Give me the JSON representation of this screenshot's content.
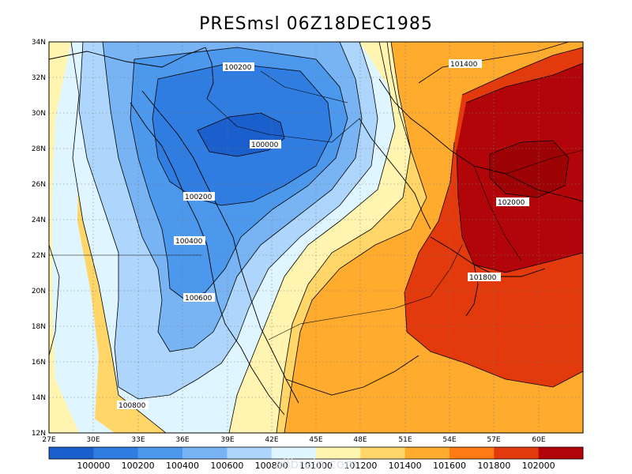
{
  "title": "PRESmsl  06Z18DEC1985",
  "watermark": "allbrain.com",
  "x_ticks": [
    "27E",
    "30E",
    "33E",
    "36E",
    "39E",
    "42E",
    "45E",
    "48E",
    "51E",
    "54E",
    "57E",
    "60E"
  ],
  "y_ticks": [
    "12N",
    "14N",
    "16N",
    "18N",
    "20N",
    "22N",
    "24N",
    "26N",
    "28N",
    "30N",
    "32N",
    "34N"
  ],
  "contour_labels": {
    "c1": "100200",
    "c2": "100000",
    "c3": "100200",
    "c4": "100400",
    "c5": "100600",
    "c6": "100800",
    "c7": "101400",
    "c8": "102000",
    "c9": "101800"
  },
  "colorbar": {
    "labels": [
      "100000",
      "100200",
      "100400",
      "100600",
      "100800",
      "101000",
      "101200",
      "101400",
      "101600",
      "101800",
      "102000"
    ],
    "colors": [
      "#1b5fcd",
      "#2f7de0",
      "#4b98ec",
      "#78b4f4",
      "#aed5fb",
      "#dff5ff",
      "#fff5b0",
      "#ffd667",
      "#ffab2e",
      "#ff7a12",
      "#e23a0d",
      "#b2050a"
    ]
  },
  "field_colors": {
    "p100000": "#1b5fcd",
    "p100200": "#2f7de0",
    "p100400": "#4b98ec",
    "p100600": "#78b4f4",
    "p100800": "#aed5fb",
    "p101000": "#dff5ff",
    "p101200": "#fff5b0",
    "p101400": "#ffd667",
    "p101600": "#ffab2e",
    "p101800": "#ff7a12",
    "p102000": "#e23a0d",
    "p102200": "#b2050a"
  }
}
